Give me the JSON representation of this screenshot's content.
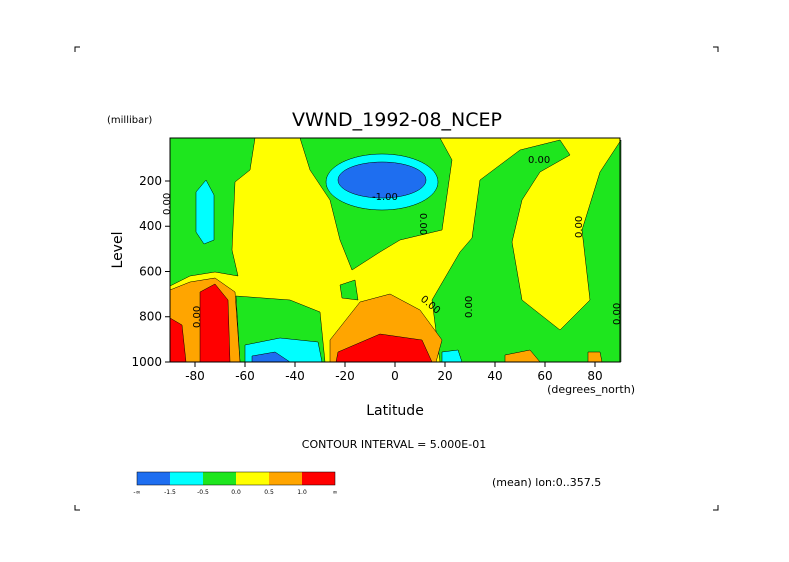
{
  "chart_data": {
    "type": "contour",
    "title": "VWND_1992-08_NCEP",
    "ylabel": "Level",
    "yunits": "(millibar)",
    "xlabel": "Latitude",
    "xunits": "(degrees_north)",
    "xlim": [
      -90,
      90
    ],
    "xticks": [
      -80,
      -60,
      -40,
      -20,
      0,
      20,
      40,
      60,
      80
    ],
    "ylim": [
      1000,
      10
    ],
    "yticks": [
      200,
      400,
      600,
      800,
      1000
    ],
    "contour_interval": "CONTOUR INTERVAL = 5.000E-01",
    "note": "(mean) lon:0..357.5",
    "colorbar": {
      "labels": [
        "-∞",
        "-1.5",
        "-0.5",
        "0.0",
        "0.5",
        "1.0",
        "∞"
      ],
      "colors": [
        "#1e6ef0",
        "#00ffff",
        "#1ee61e",
        "#ffff00",
        "#ffa500",
        "#ff0000"
      ]
    },
    "contour_labels": [
      "0.00",
      "-1.00",
      "0.00",
      "0.00",
      "0.00",
      "0.00",
      "0.00",
      "0.00",
      "0.00"
    ]
  }
}
